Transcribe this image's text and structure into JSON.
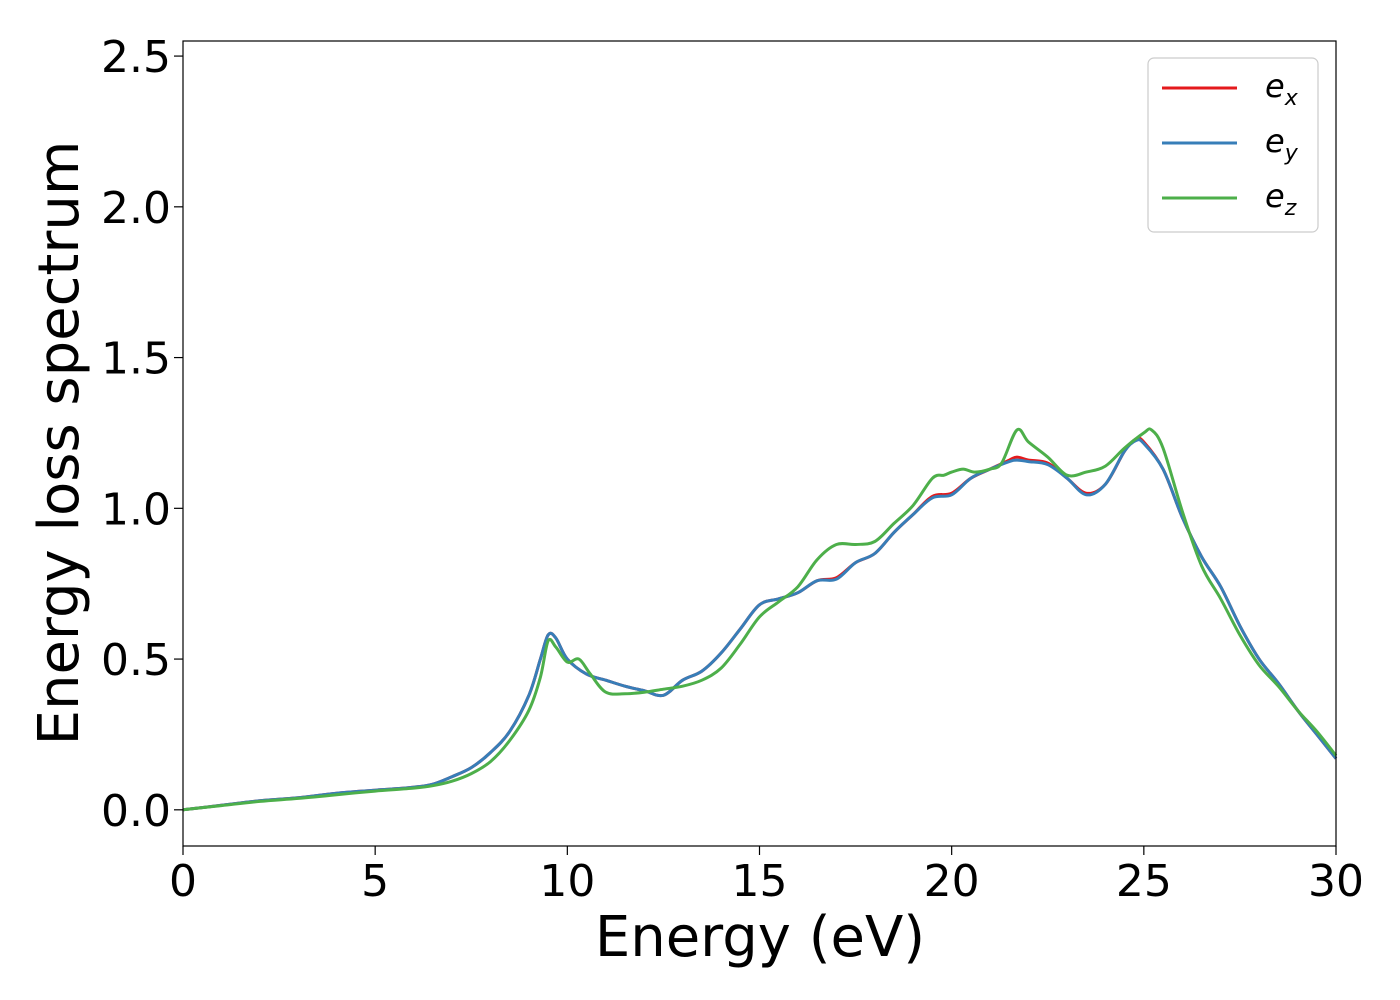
{
  "chart_data": {
    "type": "line",
    "title": "",
    "xlabel": "Energy (eV)",
    "ylabel": "Energy loss spectrum",
    "xlim": [
      0,
      30
    ],
    "ylim": [
      -0.12,
      2.55
    ],
    "x_ticks": [
      "0",
      "5",
      "10",
      "15",
      "20",
      "25",
      "30"
    ],
    "y_ticks": [
      "0.0",
      "0.5",
      "1.0",
      "1.5",
      "2.0",
      "2.5"
    ],
    "grid": false,
    "legend_position": "top-right",
    "series": [
      {
        "name_base": "e",
        "name_sub": "x",
        "color": "#e41a1c",
        "x": [
          0,
          1,
          2,
          3,
          4,
          5,
          6,
          6.5,
          7,
          7.5,
          8,
          8.5,
          9,
          9.3,
          9.5,
          9.7,
          10,
          10.5,
          11,
          11.5,
          12,
          12.5,
          13,
          13.5,
          14,
          14.5,
          15,
          15.5,
          16,
          16.5,
          17,
          17.5,
          18,
          18.5,
          19,
          19.5,
          20,
          20.5,
          21,
          21.5,
          21.7,
          22,
          22.5,
          23,
          23.5,
          24,
          24.5,
          24.8,
          25,
          25.5,
          26,
          26.5,
          27,
          27.5,
          28,
          28.5,
          29,
          29.5,
          30
        ],
        "y": [
          0,
          0.015,
          0.03,
          0.04,
          0.055,
          0.065,
          0.075,
          0.085,
          0.11,
          0.14,
          0.19,
          0.26,
          0.38,
          0.5,
          0.58,
          0.57,
          0.5,
          0.45,
          0.43,
          0.41,
          0.395,
          0.38,
          0.43,
          0.46,
          0.52,
          0.6,
          0.68,
          0.7,
          0.72,
          0.76,
          0.77,
          0.82,
          0.85,
          0.92,
          0.98,
          1.04,
          1.05,
          1.1,
          1.13,
          1.16,
          1.17,
          1.16,
          1.15,
          1.1,
          1.05,
          1.08,
          1.19,
          1.23,
          1.22,
          1.13,
          0.97,
          0.84,
          0.74,
          0.61,
          0.5,
          0.42,
          0.33,
          0.25,
          0.17
        ]
      },
      {
        "name_base": "e",
        "name_sub": "y",
        "color": "#377eb8",
        "x": [
          0,
          1,
          2,
          3,
          4,
          5,
          6,
          6.5,
          7,
          7.5,
          8,
          8.5,
          9,
          9.3,
          9.5,
          9.7,
          10,
          10.5,
          11,
          11.5,
          12,
          12.5,
          13,
          13.5,
          14,
          14.5,
          15,
          15.5,
          16,
          16.5,
          17,
          17.5,
          18,
          18.5,
          19,
          19.5,
          20,
          20.5,
          21,
          21.5,
          21.7,
          22,
          22.5,
          23,
          23.5,
          24,
          24.5,
          24.8,
          25,
          25.5,
          26,
          26.5,
          27,
          27.5,
          28,
          28.5,
          29,
          29.5,
          30
        ],
        "y": [
          0,
          0.015,
          0.03,
          0.04,
          0.055,
          0.065,
          0.075,
          0.085,
          0.11,
          0.14,
          0.19,
          0.26,
          0.38,
          0.5,
          0.58,
          0.57,
          0.5,
          0.45,
          0.43,
          0.41,
          0.395,
          0.38,
          0.43,
          0.46,
          0.52,
          0.6,
          0.68,
          0.7,
          0.72,
          0.76,
          0.765,
          0.82,
          0.85,
          0.92,
          0.98,
          1.035,
          1.045,
          1.1,
          1.13,
          1.155,
          1.16,
          1.155,
          1.145,
          1.1,
          1.045,
          1.08,
          1.19,
          1.225,
          1.215,
          1.13,
          0.97,
          0.84,
          0.74,
          0.61,
          0.5,
          0.42,
          0.33,
          0.25,
          0.17
        ]
      },
      {
        "name_base": "e",
        "name_sub": "z",
        "color": "#4daf4a",
        "x": [
          0,
          1,
          2,
          3,
          4,
          5,
          6,
          6.5,
          7,
          7.5,
          8,
          8.5,
          9,
          9.3,
          9.5,
          9.7,
          10,
          10.3,
          10.6,
          11,
          11.5,
          12,
          12.5,
          13,
          13.5,
          14,
          14.5,
          15,
          15.5,
          16,
          16.5,
          17,
          17.5,
          18,
          18.5,
          19,
          19.5,
          19.8,
          20,
          20.3,
          20.6,
          21,
          21.3,
          21.7,
          22,
          22.5,
          23,
          23.5,
          24,
          24.5,
          25,
          25.2,
          25.5,
          26,
          26.5,
          27,
          27.5,
          28,
          28.5,
          29,
          29.5,
          30
        ],
        "y": [
          0,
          0.014,
          0.028,
          0.038,
          0.05,
          0.062,
          0.072,
          0.08,
          0.095,
          0.12,
          0.16,
          0.23,
          0.33,
          0.44,
          0.56,
          0.54,
          0.49,
          0.5,
          0.45,
          0.39,
          0.385,
          0.39,
          0.4,
          0.41,
          0.43,
          0.47,
          0.55,
          0.64,
          0.69,
          0.74,
          0.83,
          0.88,
          0.88,
          0.89,
          0.95,
          1.01,
          1.1,
          1.11,
          1.12,
          1.13,
          1.12,
          1.13,
          1.15,
          1.26,
          1.22,
          1.17,
          1.11,
          1.12,
          1.14,
          1.2,
          1.25,
          1.26,
          1.2,
          0.99,
          0.81,
          0.7,
          0.58,
          0.48,
          0.41,
          0.33,
          0.26,
          0.18
        ]
      }
    ]
  }
}
